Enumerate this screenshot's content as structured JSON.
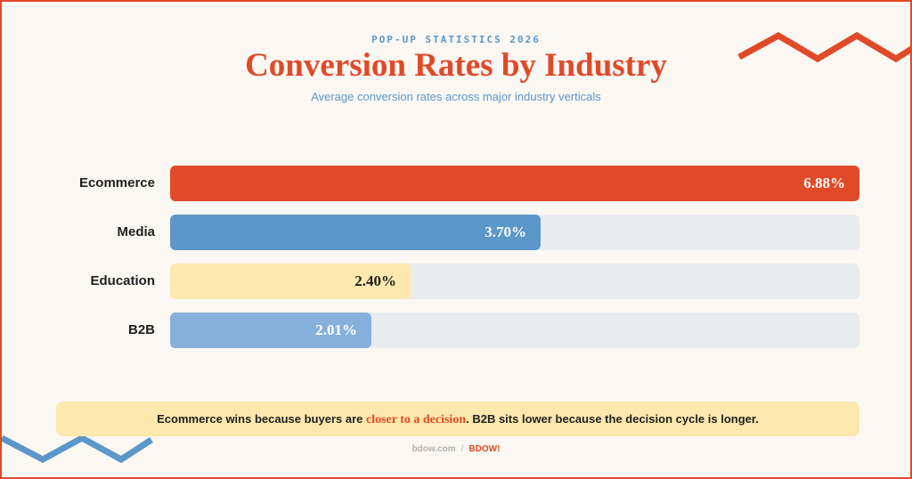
{
  "header": {
    "eyebrow": "POP-UP STATISTICS 2026",
    "title": "Conversion Rates by Industry",
    "subtitle": "Average conversion rates across major industry verticals"
  },
  "chart_data": {
    "type": "bar",
    "orientation": "horizontal",
    "categories": [
      "Ecommerce",
      "Media",
      "Education",
      "B2B"
    ],
    "values": [
      6.88,
      3.7,
      2.4,
      2.01
    ],
    "value_labels": [
      "6.88%",
      "3.70%",
      "2.40%",
      "2.01%"
    ],
    "unit": "%",
    "xlim": [
      0,
      6.88
    ],
    "bar_colors": [
      "#e04a28",
      "#5b97c9",
      "#fde8ad",
      "#85b0d9"
    ],
    "value_label_colors": [
      "#ffffff",
      "#ffffff",
      "#1f1f1f",
      "#ffffff"
    ],
    "track_color": "#e9ecef",
    "grid": false,
    "legend": "none"
  },
  "note": {
    "before": "Ecommerce wins because buyers are ",
    "highlight": "closer to a decision",
    "after": ". B2B sits lower because the decision cycle is longer."
  },
  "footer": {
    "site": "bdow.com",
    "separator": "/",
    "brand": "BDOW!"
  },
  "colors": {
    "accent": "#e04a28",
    "secondary": "#5b97c9",
    "background": "#fbf7f2",
    "highlight_panel": "#fde8ad"
  }
}
